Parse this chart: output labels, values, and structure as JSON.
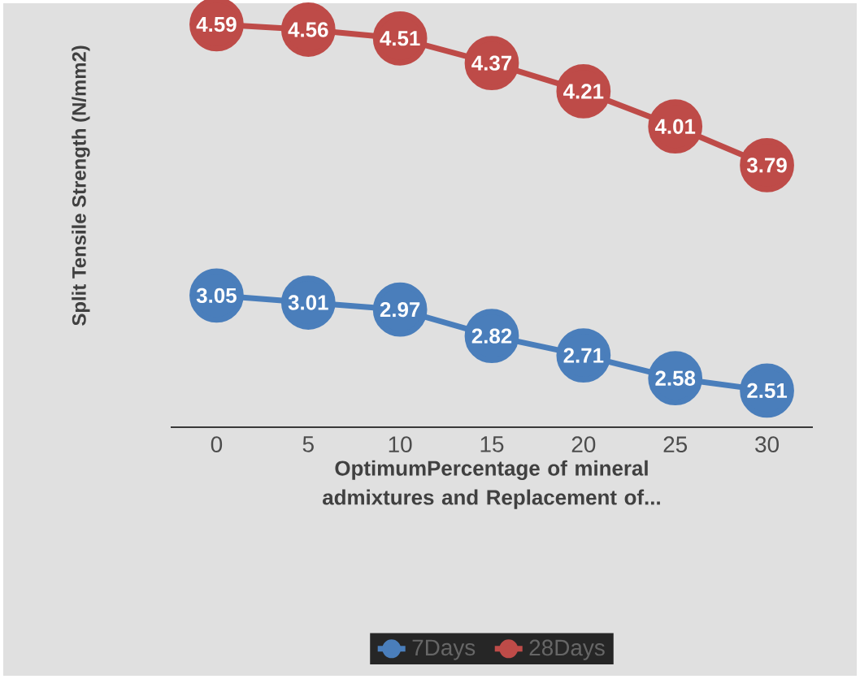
{
  "chart_data": {
    "type": "line",
    "xlabel": "OptimumPercentage  of mineral admixtures and Replacement of...",
    "ylabel": "Split Tensile Strength (N/mm2)",
    "categories": [
      "0",
      "5",
      "10",
      "15",
      "20",
      "25",
      "30"
    ],
    "series": [
      {
        "name": "7Days",
        "color": "#4a7ebb",
        "values": [
          3.05,
          3.01,
          2.97,
          2.82,
          2.71,
          2.58,
          2.51
        ]
      },
      {
        "name": "28Days",
        "color": "#be4b48",
        "values": [
          4.59,
          4.56,
          4.51,
          4.37,
          4.21,
          4.01,
          3.79
        ]
      }
    ],
    "data_labels": true,
    "marker": "circle",
    "legend": "bottom"
  }
}
